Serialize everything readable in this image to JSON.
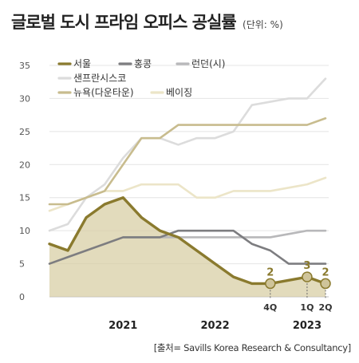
{
  "title": "글로벌 도시 프라임 오피스 공실률",
  "unit": "(단위: %)",
  "source": "[출처= Savills Korea Research & Consultancy]",
  "chart_data": {
    "type": "line",
    "title": "글로벌 도시 프라임 오피스 공실률",
    "ylim": [
      0,
      35
    ],
    "yticks": [
      0,
      5,
      10,
      15,
      20,
      25,
      30,
      35
    ],
    "x_count": 16,
    "x_tick_labels": [
      {
        "i": 12,
        "label": "4Q"
      },
      {
        "i": 14,
        "label": "1Q"
      },
      {
        "i": 15,
        "label": "2Q"
      }
    ],
    "year_labels": [
      {
        "i": 4,
        "label": "2021"
      },
      {
        "i": 9,
        "label": "2022"
      },
      {
        "i": 14,
        "label": "2023"
      }
    ],
    "grid": true,
    "legend_position": "top-left",
    "series": [
      {
        "name": "서울",
        "color": "#8a7a2e",
        "width": 3.4,
        "values": [
          8,
          7,
          12,
          14,
          15,
          12,
          10,
          9,
          7,
          5,
          3,
          2,
          2,
          2.5,
          3,
          2
        ],
        "area": true,
        "area_color": "#d8cfa6",
        "labels": [
          {
            "i": 12,
            "text": "2"
          },
          {
            "i": 14,
            "text": "3"
          },
          {
            "i": 15,
            "text": "2"
          }
        ]
      },
      {
        "name": "홍콩",
        "color": "#7d7d80",
        "width": 2.6,
        "values": [
          5,
          6,
          7,
          8,
          9,
          9,
          9,
          10,
          10,
          10,
          10,
          8,
          7,
          5,
          5,
          5
        ]
      },
      {
        "name": "런던(시)",
        "color": "#b8b8ba",
        "width": 2.6,
        "values": [
          null,
          null,
          null,
          null,
          9,
          9,
          9,
          9,
          9,
          9,
          9,
          9,
          9,
          9.5,
          10,
          10
        ]
      },
      {
        "name": "샌프란시스코",
        "color": "#dcdcdc",
        "width": 2.6,
        "values": [
          10,
          11,
          15,
          17,
          21,
          24,
          24,
          23,
          24,
          24,
          25,
          29,
          29.5,
          30,
          30,
          33
        ]
      },
      {
        "name": "뉴욕(다운타운)",
        "color": "#c8bc8e",
        "width": 2.6,
        "values": [
          14,
          14,
          15,
          16,
          20,
          24,
          24,
          26,
          26,
          26,
          26,
          26,
          26,
          26,
          26,
          27
        ]
      },
      {
        "name": "베이징",
        "color": "#ece5c8",
        "width": 2.6,
        "values": [
          13,
          14,
          15,
          16,
          16,
          17,
          17,
          17,
          15,
          15,
          16,
          16,
          16,
          16.5,
          17,
          18
        ]
      }
    ]
  }
}
